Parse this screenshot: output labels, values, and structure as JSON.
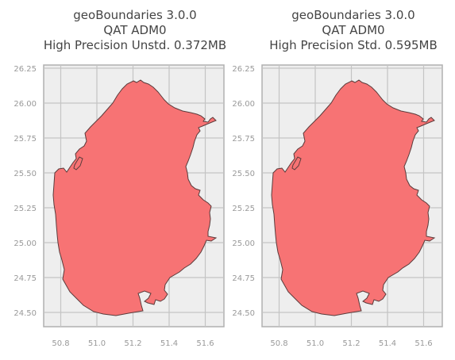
{
  "panels": [
    {
      "title_line1": "geoBoundaries 3.0.0",
      "title_line2": "QAT ADM0",
      "title_line3": "High Precision Unstd. 0.372MB"
    },
    {
      "title_line1": "geoBoundaries 3.0.0",
      "title_line2": "QAT ADM0",
      "title_line3": "High Precision Std. 0.595MB"
    }
  ],
  "axes": {
    "x_ticks": [
      "50.8",
      "51.0",
      "51.2",
      "51.4",
      "51.6"
    ],
    "y_ticks": [
      "26.25",
      "26.00",
      "25.75",
      "25.50",
      "25.25",
      "25.00",
      "24.75",
      "24.50"
    ],
    "x_values": [
      50.8,
      51.0,
      51.2,
      51.4,
      51.6
    ],
    "y_values": [
      26.25,
      26.0,
      25.75,
      25.5,
      25.25,
      25.0,
      24.75,
      24.5
    ],
    "grid": true
  },
  "colors": {
    "fill": "#f77374",
    "stroke": "#5a3b3b",
    "panel_bg": "#eeeeee",
    "grid": "#c4c4c4",
    "frame": "#b0b0b0"
  }
}
